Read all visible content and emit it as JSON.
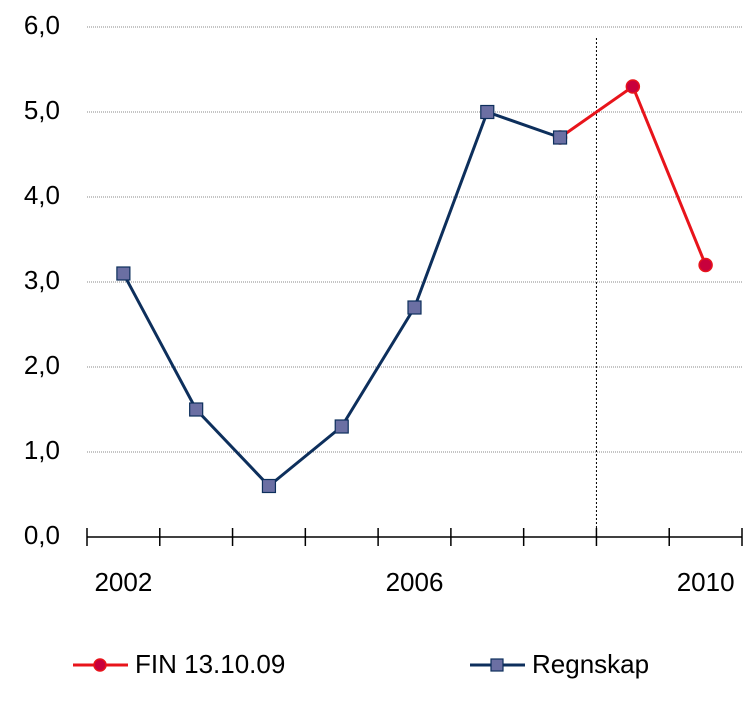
{
  "chart_data": {
    "type": "line",
    "categories": [
      "2002",
      null,
      null,
      null,
      "2006",
      null,
      null,
      null,
      "2010"
    ],
    "series": [
      {
        "name": "FIN 13.10.09",
        "color": "#e8141b",
        "marker": "circle",
        "marker_color": "#c8003c",
        "values": [
          null,
          null,
          null,
          null,
          null,
          null,
          4.7,
          5.3,
          3.2
        ]
      },
      {
        "name": "Regnskap",
        "color": "#0d2f5c",
        "marker": "square",
        "marker_color": "#6b6fa3",
        "values": [
          3.1,
          1.5,
          0.6,
          1.3,
          2.7,
          5.0,
          4.7,
          null,
          null
        ]
      }
    ],
    "ylim": [
      0,
      6
    ],
    "yticks": [
      {
        "value": 0,
        "label": "0,0"
      },
      {
        "value": 1,
        "label": "1,0"
      },
      {
        "value": 2,
        "label": "2,0"
      },
      {
        "value": 3,
        "label": "3,0"
      },
      {
        "value": 4,
        "label": "4,0"
      },
      {
        "value": 5,
        "label": "5,0"
      },
      {
        "value": 6,
        "label": "6,0"
      }
    ],
    "grid": true,
    "legend": "bottom"
  }
}
